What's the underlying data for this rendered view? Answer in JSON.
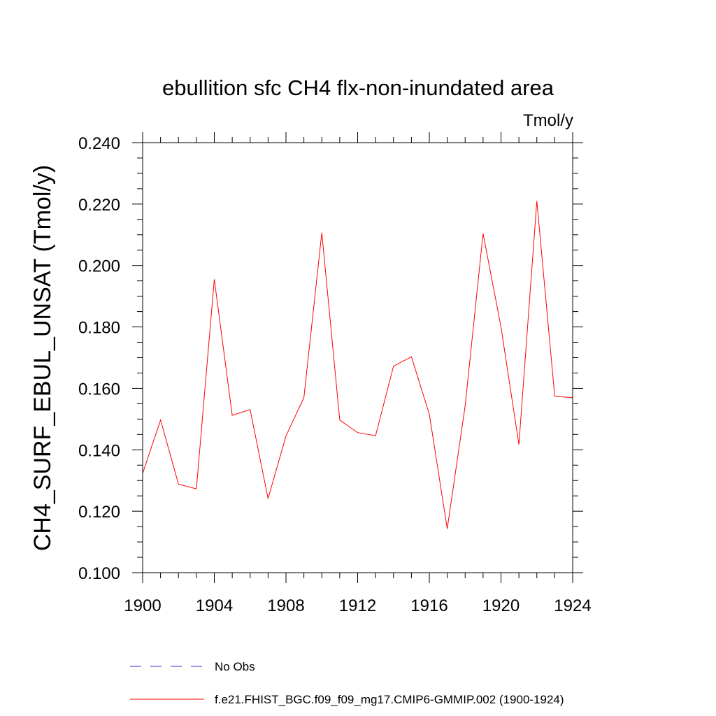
{
  "chart_data": {
    "type": "line",
    "title": "ebullition sfc CH4 flx-non-inundated area",
    "units_label": "Tmol/y",
    "xlabel": "",
    "ylabel": "CH4_SURF_EBUL_UNSAT  (Tmol/y)",
    "xlim": [
      1900,
      1924
    ],
    "ylim": [
      0.1,
      0.24
    ],
    "x_ticks": [
      1900,
      1904,
      1908,
      1912,
      1916,
      1920,
      1924
    ],
    "x_tick_labels": [
      "1900",
      "1904",
      "1908",
      "1912",
      "1916",
      "1920",
      "1924"
    ],
    "y_ticks": [
      0.1,
      0.12,
      0.14,
      0.16,
      0.18,
      0.2,
      0.22,
      0.24
    ],
    "y_tick_labels": [
      "0.100",
      "0.120",
      "0.140",
      "0.160",
      "0.180",
      "0.200",
      "0.220",
      "0.240"
    ],
    "grid": false,
    "series": [
      {
        "name": "f.e21.FHIST_BGC.f09_f09_mg17.CMIP6-GMMIP.002 (1900-1924)",
        "color": "#ff0000",
        "x": [
          1900,
          1901,
          1902,
          1903,
          1904,
          1905,
          1906,
          1907,
          1908,
          1909,
          1910,
          1911,
          1912,
          1913,
          1914,
          1915,
          1916,
          1917,
          1918,
          1919,
          1920,
          1921,
          1922,
          1923,
          1924
        ],
        "values": [
          0.1323,
          0.1497,
          0.1288,
          0.1273,
          0.1955,
          0.1512,
          0.1531,
          0.1241,
          0.1445,
          0.157,
          0.2107,
          0.1497,
          0.1456,
          0.1446,
          0.1672,
          0.1703,
          0.1516,
          0.1143,
          0.1543,
          0.2104,
          0.18,
          0.1417,
          0.221,
          0.1574,
          0.157
        ]
      }
    ],
    "legend": [
      {
        "label": "No Obs",
        "color": "#3333cc",
        "style": "dashed"
      },
      {
        "label": "f.e21.FHIST_BGC.f09_f09_mg17.CMIP6-GMMIP.002 (1900-1924)",
        "color": "#ff0000",
        "style": "solid"
      }
    ]
  }
}
